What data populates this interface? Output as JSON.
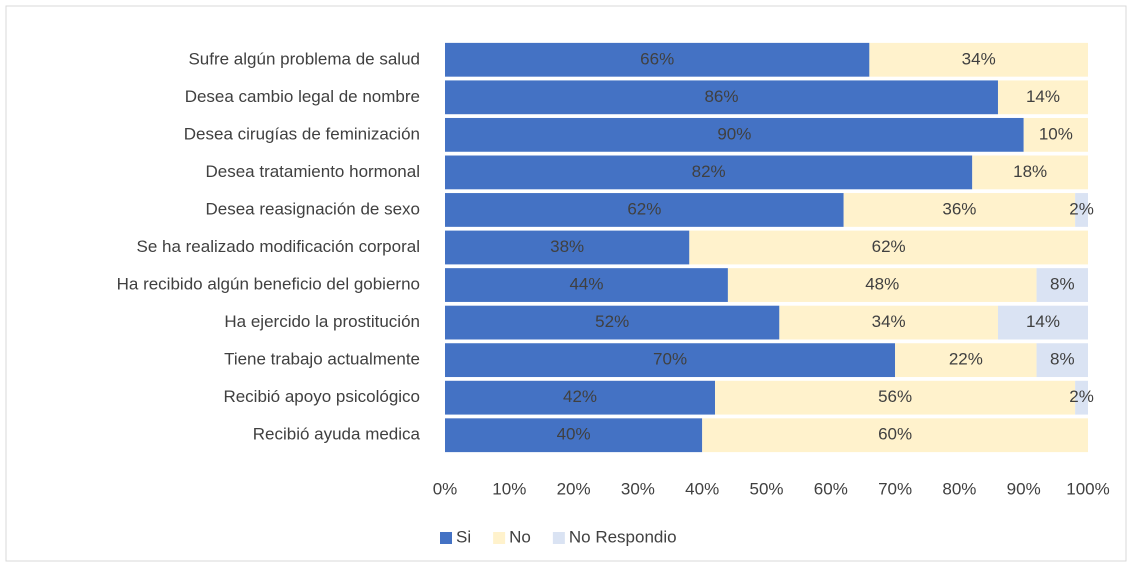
{
  "chart_data": {
    "type": "stacked-barh",
    "categories": [
      "Sufre algún problema de salud",
      "Desea cambio legal de nombre",
      "Desea cirugías de feminización",
      "Desea tratamiento hormonal",
      "Desea reasignación de sexo",
      "Se ha realizado modificación corporal",
      "Ha recibido algún beneficio del gobierno",
      "Ha ejercido la prostitución",
      "Tiene trabajo actualmente",
      "Recibió apoyo psicológico",
      "Recibió ayuda medica"
    ],
    "series": [
      {
        "name": "Si",
        "color": "#4472c4",
        "values": [
          66,
          86,
          90,
          82,
          62,
          38,
          44,
          52,
          70,
          42,
          40
        ],
        "value_labels": [
          "66%",
          "86%",
          "90%",
          "82%",
          "62%",
          "38%",
          "44%",
          "52%",
          "70%",
          "42%",
          "40%"
        ]
      },
      {
        "name": "No",
        "color": "#fff2cc",
        "values": [
          34,
          14,
          10,
          18,
          36,
          62,
          48,
          34,
          22,
          56,
          60
        ],
        "value_labels": [
          "34%",
          "14%",
          "10%",
          "18%",
          "36%",
          "62%",
          "48%",
          "34%",
          "22%",
          "56%",
          "60%"
        ]
      },
      {
        "name": "No Respondio",
        "color": "#dae3f3",
        "values": [
          null,
          null,
          null,
          null,
          2,
          null,
          8,
          14,
          8,
          2,
          null
        ],
        "value_labels": [
          null,
          null,
          null,
          null,
          "2%",
          null,
          "8%",
          "14%",
          "8%",
          "2%",
          null
        ]
      }
    ],
    "xlim": [
      0,
      100
    ],
    "xticks": [
      {
        "value": 0,
        "label": "0%"
      },
      {
        "value": 10,
        "label": "10%"
      },
      {
        "value": 20,
        "label": "20%"
      },
      {
        "value": 30,
        "label": "30%"
      },
      {
        "value": 40,
        "label": "40%"
      },
      {
        "value": 50,
        "label": "50%"
      },
      {
        "value": 60,
        "label": "60%"
      },
      {
        "value": 70,
        "label": "70%"
      },
      {
        "value": 80,
        "label": "80%"
      },
      {
        "value": 90,
        "label": "90%"
      },
      {
        "value": 100,
        "label": "100%"
      }
    ],
    "legend": "bottom"
  }
}
